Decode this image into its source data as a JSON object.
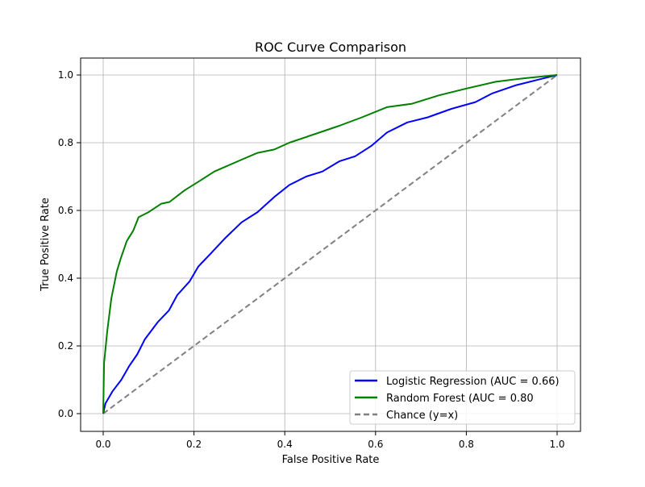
{
  "chart_data": {
    "type": "line",
    "title": "ROC Curve Comparison",
    "xlabel": "False Positive Rate",
    "ylabel": "True Positive Rate",
    "xlim": [
      -0.05,
      1.05
    ],
    "ylim": [
      -0.05,
      1.05
    ],
    "xticks": [
      "0.0",
      "0.2",
      "0.4",
      "0.6",
      "0.8",
      "1.0"
    ],
    "yticks": [
      "0.0",
      "0.2",
      "0.4",
      "0.6",
      "0.8",
      "1.0"
    ],
    "grid": true,
    "legend_position": "bottom-right",
    "series": [
      {
        "name": "Logistic Regression (AUC = 0.66)",
        "color": "#0000ff",
        "style": "solid",
        "x": [
          0,
          0.005,
          0.02,
          0.04,
          0.057,
          0.075,
          0.092,
          0.12,
          0.145,
          0.163,
          0.19,
          0.21,
          0.235,
          0.27,
          0.305,
          0.34,
          0.377,
          0.41,
          0.447,
          0.483,
          0.52,
          0.555,
          0.59,
          0.625,
          0.67,
          0.715,
          0.767,
          0.82,
          0.856,
          0.91,
          0.97,
          1.0
        ],
        "y": [
          0,
          0.03,
          0.065,
          0.1,
          0.14,
          0.175,
          0.22,
          0.27,
          0.305,
          0.35,
          0.39,
          0.435,
          0.47,
          0.52,
          0.565,
          0.595,
          0.64,
          0.675,
          0.7,
          0.715,
          0.745,
          0.76,
          0.79,
          0.83,
          0.86,
          0.875,
          0.9,
          0.92,
          0.945,
          0.97,
          0.99,
          1.0
        ]
      },
      {
        "name": "Random Forest (AUC = 0.80",
        "color": "#008000",
        "style": "solid",
        "x": [
          0,
          0.002,
          0.009,
          0.018,
          0.03,
          0.039,
          0.052,
          0.066,
          0.078,
          0.1,
          0.128,
          0.146,
          0.18,
          0.21,
          0.245,
          0.305,
          0.34,
          0.377,
          0.41,
          0.465,
          0.52,
          0.57,
          0.625,
          0.68,
          0.74,
          0.8,
          0.865,
          0.925,
          1.0
        ],
        "y": [
          0,
          0.15,
          0.245,
          0.34,
          0.42,
          0.46,
          0.51,
          0.54,
          0.58,
          0.595,
          0.62,
          0.625,
          0.66,
          0.685,
          0.715,
          0.75,
          0.77,
          0.78,
          0.8,
          0.825,
          0.85,
          0.875,
          0.905,
          0.915,
          0.94,
          0.96,
          0.98,
          0.99,
          1.0
        ]
      },
      {
        "name": "Chance (y=x)",
        "color": "#808080",
        "style": "dashed",
        "x": [
          0,
          1
        ],
        "y": [
          0,
          1
        ]
      }
    ]
  }
}
